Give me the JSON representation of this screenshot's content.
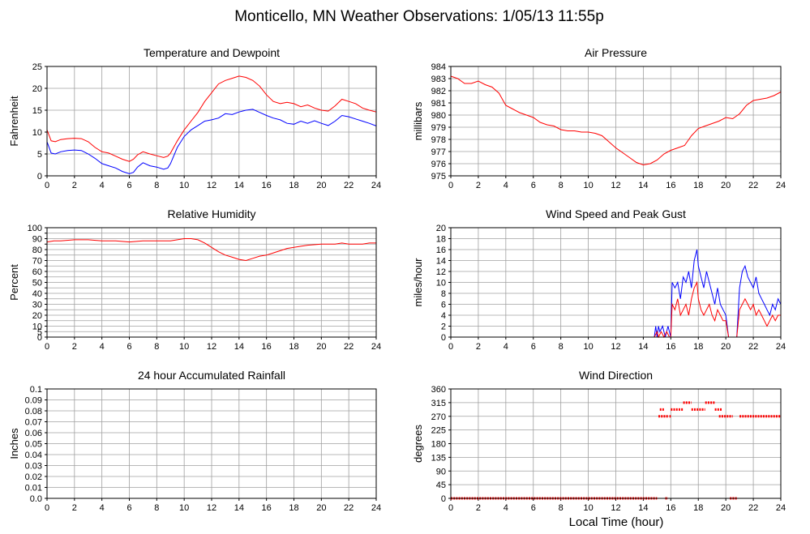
{
  "page_title": "Monticello, MN Weather Observations: 1/05/13 11:55p",
  "xlabel": "Local Time (hour)",
  "chart_data": [
    {
      "id": "temperature",
      "type": "line",
      "title": "Temperature and Dewpoint",
      "ylabel": "Fahrenheit",
      "xlim": [
        0,
        24
      ],
      "ylim": [
        0,
        25
      ],
      "xticks": [
        0,
        2,
        4,
        6,
        8,
        10,
        12,
        14,
        16,
        18,
        20,
        22,
        24
      ],
      "yticks": [
        0,
        5,
        10,
        15,
        20,
        25
      ],
      "grid": true,
      "series": [
        {
          "color": "#ff0000",
          "x": [
            0,
            0.3,
            0.6,
            1,
            1.5,
            2,
            2.5,
            3,
            3.5,
            4,
            4.5,
            5,
            5.5,
            6,
            6.3,
            6.6,
            7,
            7.5,
            8,
            8.5,
            8.8,
            9,
            9.5,
            10,
            10.5,
            11,
            11.5,
            12,
            12.5,
            13,
            13.5,
            14,
            14.5,
            15,
            15.5,
            16,
            16.5,
            17,
            17.5,
            18,
            18.5,
            19,
            19.5,
            20,
            20.5,
            21,
            21.5,
            22,
            22.5,
            23,
            23.5,
            24
          ],
          "y": [
            10.5,
            8.0,
            7.8,
            8.3,
            8.5,
            8.6,
            8.5,
            7.8,
            6.5,
            5.5,
            5.2,
            4.5,
            3.8,
            3.3,
            3.8,
            4.8,
            5.5,
            5.0,
            4.6,
            4.2,
            4.5,
            5.2,
            8.0,
            10.5,
            12.5,
            14.5,
            17.0,
            19.0,
            21.0,
            21.8,
            22.3,
            22.8,
            22.5,
            21.8,
            20.5,
            18.5,
            17.0,
            16.5,
            16.8,
            16.5,
            15.8,
            16.2,
            15.5,
            15.0,
            14.8,
            16.0,
            17.5,
            17.0,
            16.5,
            15.5,
            15.0,
            14.6
          ]
        },
        {
          "color": "#0000ff",
          "x": [
            0,
            0.3,
            0.6,
            1,
            1.5,
            2,
            2.5,
            3,
            3.5,
            4,
            4.5,
            5,
            5.5,
            6,
            6.3,
            6.6,
            7,
            7.5,
            8,
            8.5,
            8.8,
            9,
            9.5,
            10,
            10.5,
            11,
            11.5,
            12,
            12.5,
            13,
            13.5,
            14,
            14.5,
            15,
            15.5,
            16,
            16.5,
            17,
            17.5,
            18,
            18.5,
            19,
            19.5,
            20,
            20.5,
            21,
            21.5,
            22,
            22.5,
            23,
            23.5,
            24
          ],
          "y": [
            7.8,
            5.2,
            5.0,
            5.5,
            5.8,
            5.9,
            5.8,
            5.0,
            4.0,
            2.8,
            2.3,
            1.8,
            1.0,
            0.5,
            0.8,
            2.0,
            3.0,
            2.3,
            2.0,
            1.5,
            1.8,
            2.8,
            6.5,
            9.0,
            10.5,
            11.5,
            12.5,
            12.8,
            13.2,
            14.2,
            14.0,
            14.6,
            15.0,
            15.2,
            14.5,
            13.8,
            13.2,
            12.8,
            12.0,
            11.8,
            12.5,
            12.0,
            12.6,
            12.0,
            11.5,
            12.5,
            13.8,
            13.5,
            13.0,
            12.5,
            12.0,
            11.4
          ]
        }
      ]
    },
    {
      "id": "pressure",
      "type": "line",
      "title": "Air Pressure",
      "ylabel": "millibars",
      "xlim": [
        0,
        24
      ],
      "ylim": [
        975,
        984
      ],
      "xticks": [
        0,
        2,
        4,
        6,
        8,
        10,
        12,
        14,
        16,
        18,
        20,
        22,
        24
      ],
      "yticks": [
        975,
        976,
        977,
        978,
        979,
        980,
        981,
        982,
        983,
        984
      ],
      "grid": true,
      "series": [
        {
          "color": "#ff0000",
          "x": [
            0,
            0.5,
            1,
            1.5,
            2,
            2.5,
            3,
            3.5,
            4,
            4.5,
            5,
            5.5,
            6,
            6.5,
            7,
            7.5,
            8,
            8.5,
            9,
            9.5,
            10,
            10.5,
            11,
            11.5,
            12,
            12.5,
            13,
            13.5,
            14,
            14.5,
            15,
            15.5,
            16,
            16.5,
            17,
            17.5,
            18,
            18.5,
            19,
            19.5,
            20,
            20.5,
            21,
            21.5,
            22,
            22.5,
            23,
            23.5,
            24
          ],
          "y": [
            983.2,
            983.0,
            982.6,
            982.6,
            982.8,
            982.5,
            982.3,
            981.8,
            980.8,
            980.5,
            980.2,
            980.0,
            979.8,
            979.4,
            979.2,
            979.1,
            978.8,
            978.7,
            978.7,
            978.6,
            978.6,
            978.5,
            978.3,
            977.8,
            977.3,
            976.9,
            976.5,
            976.1,
            975.9,
            976.0,
            976.3,
            976.8,
            977.1,
            977.3,
            977.5,
            978.3,
            978.9,
            979.1,
            979.3,
            979.5,
            979.8,
            979.7,
            980.1,
            980.8,
            981.2,
            981.3,
            981.4,
            981.6,
            981.9
          ]
        }
      ]
    },
    {
      "id": "humidity",
      "type": "line",
      "title": "Relative Humidity",
      "ylabel": "Percent",
      "xlim": [
        0,
        24
      ],
      "ylim": [
        0,
        100
      ],
      "xticks": [
        0,
        2,
        4,
        6,
        8,
        10,
        12,
        14,
        16,
        18,
        20,
        22,
        24
      ],
      "yticks": [
        0,
        5,
        10,
        15,
        20,
        25,
        30,
        35,
        40,
        45,
        50,
        55,
        60,
        65,
        70,
        75,
        80,
        85,
        90,
        95,
        100
      ],
      "yticklabels": [
        0,
        5,
        10,
        20,
        30,
        40,
        50,
        60,
        70,
        80,
        90,
        100
      ],
      "grid": true,
      "series": [
        {
          "color": "#ff0000",
          "x": [
            0,
            0.5,
            1,
            2,
            3,
            4,
            5,
            6,
            7,
            8,
            9,
            10,
            10.5,
            11,
            11.5,
            12,
            12.5,
            13,
            13.5,
            14,
            14.5,
            15,
            15.5,
            16,
            16.5,
            17,
            17.5,
            18,
            18.5,
            19,
            20,
            21,
            21.5,
            22,
            22.5,
            23,
            23.5,
            24
          ],
          "y": [
            87,
            88,
            88,
            89,
            89,
            88,
            88,
            87,
            88,
            88,
            88,
            90,
            90,
            89,
            86,
            82,
            78,
            75,
            73,
            71,
            70,
            72,
            74,
            75,
            77,
            79,
            81,
            82,
            83,
            84,
            85,
            85,
            86,
            85,
            85,
            85,
            86,
            86
          ]
        }
      ]
    },
    {
      "id": "wind",
      "type": "line",
      "title": "Wind Speed and Peak Gust",
      "ylabel": "miles/hour",
      "xlim": [
        0,
        24
      ],
      "ylim": [
        0,
        20
      ],
      "xticks": [
        0,
        2,
        4,
        6,
        8,
        10,
        12,
        14,
        16,
        18,
        20,
        22,
        24
      ],
      "yticks": [
        0,
        2,
        4,
        6,
        8,
        10,
        12,
        14,
        16,
        18,
        20
      ],
      "grid": true,
      "series": [
        {
          "color": "#0000ff",
          "x": [
            0,
            14.8,
            14.9,
            15.0,
            15.1,
            15.2,
            15.4,
            15.6,
            15.8,
            16.0,
            16.1,
            16.3,
            16.5,
            16.7,
            16.9,
            17.1,
            17.3,
            17.5,
            17.7,
            17.9,
            18.0,
            18.2,
            18.4,
            18.6,
            18.8,
            19.0,
            19.2,
            19.4,
            19.6,
            19.8,
            20.0,
            20.2,
            20.4,
            20.6,
            20.8,
            21.0,
            21.2,
            21.4,
            21.6,
            21.8,
            22.0,
            22.2,
            22.4,
            22.6,
            22.8,
            23.0,
            23.2,
            23.4,
            23.6,
            23.8,
            24
          ],
          "y": [
            0,
            0,
            2,
            0,
            2,
            1,
            2,
            0,
            2,
            0,
            10,
            9,
            10,
            7,
            11,
            10,
            12,
            9,
            14,
            16,
            13,
            11,
            9,
            12,
            10,
            8,
            6,
            9,
            6,
            5,
            4,
            0,
            0,
            0,
            0,
            9,
            12,
            13,
            11,
            10,
            9,
            11,
            8,
            7,
            6,
            5,
            4,
            6,
            5,
            7,
            6
          ]
        },
        {
          "color": "#ff0000",
          "x": [
            0,
            14.8,
            15.0,
            15.1,
            15.3,
            15.5,
            15.7,
            15.9,
            16.0,
            16.1,
            16.3,
            16.5,
            16.7,
            16.9,
            17.1,
            17.3,
            17.5,
            17.7,
            17.9,
            18.0,
            18.2,
            18.4,
            18.6,
            18.8,
            19.0,
            19.2,
            19.4,
            19.6,
            19.8,
            20.0,
            20.2,
            20.4,
            20.6,
            20.8,
            21.0,
            21.2,
            21.4,
            21.6,
            21.8,
            22.0,
            22.2,
            22.4,
            22.6,
            22.8,
            23.0,
            23.2,
            23.4,
            23.6,
            23.8,
            24
          ],
          "y": [
            0,
            0,
            1,
            0,
            1,
            0,
            1,
            0,
            0,
            6,
            5,
            7,
            4,
            5,
            6,
            4,
            7,
            9,
            10,
            7,
            5,
            4,
            5,
            6,
            4,
            3,
            5,
            4,
            3,
            3,
            0,
            0,
            0,
            0,
            5,
            6,
            7,
            6,
            5,
            6,
            4,
            5,
            4,
            3,
            2,
            3,
            4,
            3,
            4,
            4
          ]
        }
      ]
    },
    {
      "id": "rainfall",
      "type": "line",
      "title": "24 hour Accumulated Rainfall",
      "ylabel": "Inches",
      "xlim": [
        0,
        24
      ],
      "ylim": [
        0,
        0.1
      ],
      "xticks": [
        0,
        2,
        4,
        6,
        8,
        10,
        12,
        14,
        16,
        18,
        20,
        22,
        24
      ],
      "yticks": [
        0.0,
        0.01,
        0.02,
        0.03,
        0.04,
        0.05,
        0.06,
        0.07,
        0.08,
        0.09,
        0.1
      ],
      "yticklabels": [
        "0.0",
        "0.01",
        "0.02",
        "0.03",
        "0.04",
        "0.05",
        "0.06",
        "0.07",
        "0.08",
        "0.09",
        "0.1"
      ],
      "grid": true,
      "series": [
        {
          "color": "#ff0000",
          "x": [
            0,
            24
          ],
          "y": [
            0,
            0
          ]
        }
      ]
    },
    {
      "id": "direction",
      "type": "scatter",
      "title": "Wind Direction",
      "ylabel": "degrees",
      "xlim": [
        0,
        24
      ],
      "ylim": [
        0,
        360
      ],
      "xticks": [
        0,
        2,
        4,
        6,
        8,
        10,
        12,
        14,
        16,
        18,
        20,
        22,
        24
      ],
      "yticks": [
        0,
        45,
        90,
        135,
        180,
        225,
        270,
        315,
        360
      ],
      "grid": true,
      "series": [
        {
          "color": "#ff0000",
          "segments": [
            {
              "x0": 0.0,
              "x1": 15.0,
              "y": 0
            },
            {
              "x0": 15.6,
              "x1": 15.8,
              "y": 0
            },
            {
              "x0": 20.3,
              "x1": 20.8,
              "y": 0
            },
            {
              "x0": 15.1,
              "x1": 15.8,
              "y": 270
            },
            {
              "x0": 15.2,
              "x1": 15.5,
              "y": 292.5
            },
            {
              "x0": 15.9,
              "x1": 16.0,
              "y": 270
            },
            {
              "x0": 16.0,
              "x1": 16.9,
              "y": 292.5
            },
            {
              "x0": 16.9,
              "x1": 17.5,
              "y": 315
            },
            {
              "x0": 17.5,
              "x1": 18.5,
              "y": 292.5
            },
            {
              "x0": 18.5,
              "x1": 19.2,
              "y": 315
            },
            {
              "x0": 19.2,
              "x1": 19.7,
              "y": 292.5
            },
            {
              "x0": 19.5,
              "x1": 20.5,
              "y": 270
            },
            {
              "x0": 21.0,
              "x1": 24.0,
              "y": 270
            }
          ]
        }
      ]
    }
  ]
}
